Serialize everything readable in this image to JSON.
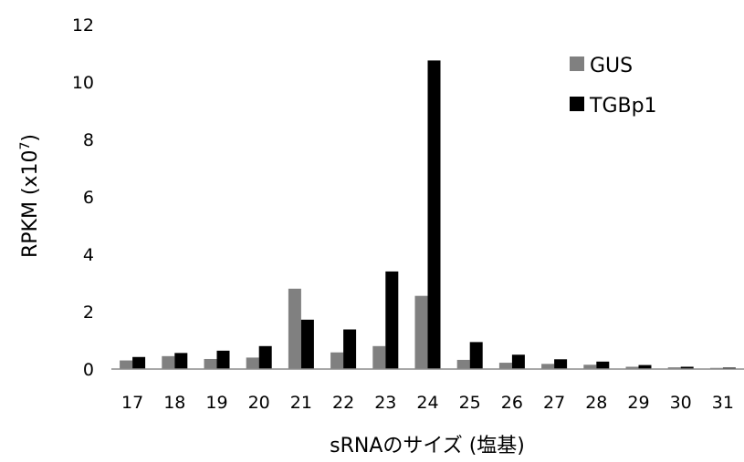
{
  "chart_data": {
    "type": "bar",
    "categories": [
      "17",
      "18",
      "19",
      "20",
      "21",
      "22",
      "23",
      "24",
      "25",
      "26",
      "27",
      "28",
      "29",
      "30",
      "31"
    ],
    "series": [
      {
        "name": "GUS",
        "color": "#808080",
        "values": [
          0.3,
          0.45,
          0.35,
          0.4,
          2.8,
          0.58,
          0.8,
          2.55,
          0.32,
          0.22,
          0.18,
          0.15,
          0.08,
          0.06,
          0.04
        ]
      },
      {
        "name": "TGBp1",
        "color": "#000000",
        "values": [
          0.42,
          0.56,
          0.64,
          0.8,
          1.72,
          1.38,
          3.4,
          10.75,
          0.94,
          0.5,
          0.34,
          0.26,
          0.14,
          0.08,
          0.05
        ]
      }
    ],
    "xlabel": "sRNAのサイズ (塩基)",
    "ylabel_main": "RPKM (x10",
    "ylabel_sup": "7",
    "ylabel_close": ")",
    "ylim": [
      0,
      12
    ],
    "yticks": [
      "0",
      "2",
      "4",
      "6",
      "8",
      "10",
      "12"
    ],
    "legend_position": "top-right",
    "grid": false
  }
}
